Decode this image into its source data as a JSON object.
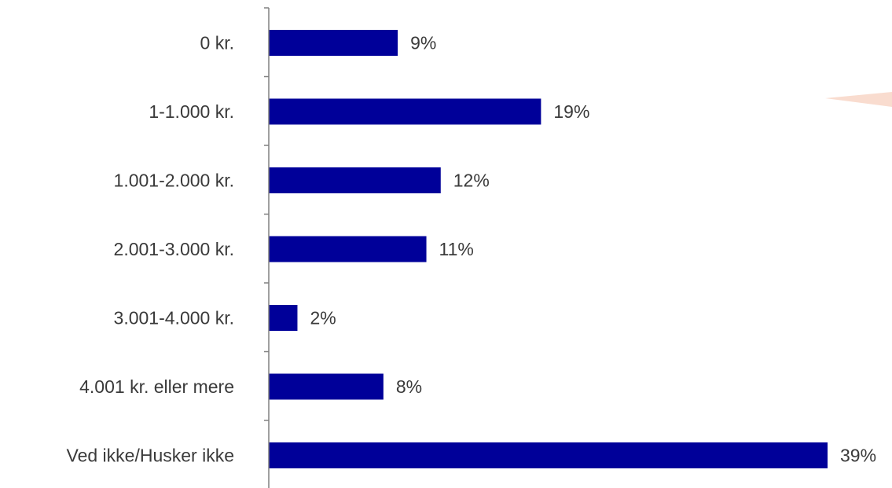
{
  "chart_data": {
    "type": "bar",
    "orientation": "horizontal",
    "categories": [
      "0 kr.",
      "1-1.000 kr.",
      "1.001-2.000 kr.",
      "2.001-3.000 kr.",
      "3.001-4.000 kr.",
      "4.001 kr. eller mere",
      "Ved ikke/Husker ikke"
    ],
    "values": [
      9,
      19,
      12,
      11,
      2,
      8,
      39
    ],
    "value_labels": [
      "9%",
      "19%",
      "12%",
      "11%",
      "2%",
      "8%",
      "39%"
    ],
    "unit": "%",
    "xlim": [
      0,
      39
    ],
    "grid": false,
    "legend": "none",
    "colors": {
      "bar": "#000099",
      "axis": "#808080",
      "text": "#3a3a3a",
      "accent_wedge": "#f9dccf"
    }
  }
}
